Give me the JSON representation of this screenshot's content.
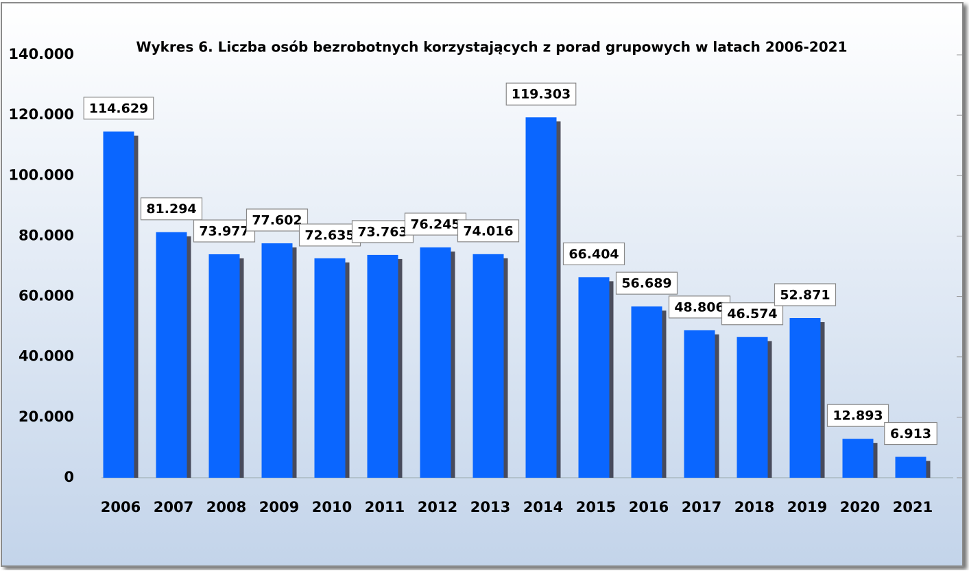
{
  "chart_data": {
    "type": "bar",
    "title": "Wykres 6. Liczba osób bezrobotnych korzystających z porad grupowych w latach 2006-2021",
    "categories": [
      "2006",
      "2007",
      "2008",
      "2009",
      "2010",
      "2011",
      "2012",
      "2013",
      "2014",
      "2015",
      "2016",
      "2017",
      "2018",
      "2019",
      "2020",
      "2021"
    ],
    "values": [
      114629,
      81294,
      73977,
      77602,
      72635,
      73763,
      76245,
      74016,
      119303,
      66404,
      56689,
      48806,
      46574,
      52871,
      12893,
      6913
    ],
    "value_labels": [
      "114.629",
      "81.294",
      "73.977",
      "77.602",
      "72.635",
      "73.763",
      "76.245",
      "74.016",
      "119.303",
      "66.404",
      "56.689",
      "48.806",
      "46.574",
      "52.871",
      "12.893",
      "6.913"
    ],
    "color": "#0a66ff",
    "ylim": [
      0,
      140000
    ],
    "yticks": [
      0,
      {
        "value": 20000,
        "label": "20.000"
      },
      {
        "value": 40000,
        "label": "40.000"
      },
      {
        "value": 60000,
        "label": "60.000"
      },
      {
        "value": 80000,
        "label": "80.000"
      },
      {
        "value": 100000,
        "label": "100.000"
      },
      {
        "value": 120000,
        "label": "120.000"
      },
      {
        "value": 140000,
        "label": "140.000"
      }
    ],
    "grid": false
  }
}
